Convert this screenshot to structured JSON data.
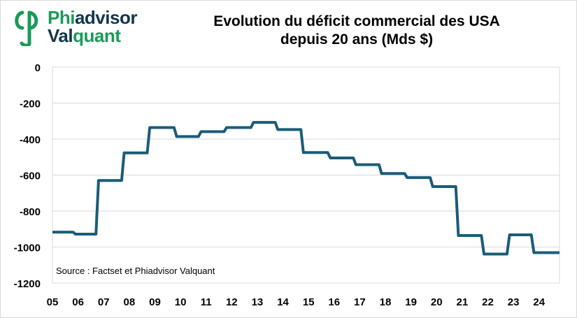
{
  "logo": {
    "line1": "Phiadvisor",
    "line2": "Valquant",
    "colors": {
      "phi": "#1a9a5a",
      "advisor": "#12364d"
    }
  },
  "title": {
    "line1": "Evolution du déficit commercial des USA",
    "line2": "depuis 20 ans (Mds $)"
  },
  "source": "Source : Factset et Phiadvisor Valquant",
  "colors": {
    "line": "#1b5c78",
    "grid": "#d9d9d9"
  },
  "chart_data": {
    "type": "line",
    "title": "Evolution du déficit commercial des USA depuis 20 ans (Mds $)",
    "xlabel": "",
    "ylabel": "",
    "ylim": [
      -1200,
      0
    ],
    "yticks": [
      0,
      -200,
      -400,
      -600,
      -800,
      -1000,
      -1200
    ],
    "xlim": [
      2005,
      2024.8
    ],
    "xticks": [
      "05",
      "06",
      "07",
      "08",
      "09",
      "10",
      "11",
      "12",
      "13",
      "14",
      "15",
      "16",
      "17",
      "18",
      "19",
      "20",
      "21",
      "22",
      "23",
      "24"
    ],
    "grid": true,
    "legend": "none",
    "series": [
      {
        "values": [
          {
            "x": 2005.0,
            "y": -917
          },
          {
            "x": 2005.8,
            "y": -917
          },
          {
            "x": 2005.9,
            "y": -928
          },
          {
            "x": 2006.7,
            "y": -928
          },
          {
            "x": 2006.8,
            "y": -630
          },
          {
            "x": 2007.7,
            "y": -630
          },
          {
            "x": 2007.8,
            "y": -477
          },
          {
            "x": 2008.7,
            "y": -477
          },
          {
            "x": 2008.8,
            "y": -336
          },
          {
            "x": 2009.75,
            "y": -336
          },
          {
            "x": 2009.85,
            "y": -386
          },
          {
            "x": 2010.7,
            "y": -386
          },
          {
            "x": 2010.8,
            "y": -359
          },
          {
            "x": 2011.7,
            "y": -359
          },
          {
            "x": 2011.8,
            "y": -336
          },
          {
            "x": 2012.75,
            "y": -336
          },
          {
            "x": 2012.85,
            "y": -307
          },
          {
            "x": 2013.7,
            "y": -307
          },
          {
            "x": 2013.8,
            "y": -347
          },
          {
            "x": 2014.7,
            "y": -347
          },
          {
            "x": 2014.8,
            "y": -475
          },
          {
            "x": 2015.75,
            "y": -475
          },
          {
            "x": 2015.85,
            "y": -505
          },
          {
            "x": 2016.75,
            "y": -505
          },
          {
            "x": 2016.85,
            "y": -542
          },
          {
            "x": 2017.75,
            "y": -542
          },
          {
            "x": 2017.85,
            "y": -591
          },
          {
            "x": 2018.75,
            "y": -591
          },
          {
            "x": 2018.85,
            "y": -614
          },
          {
            "x": 2019.75,
            "y": -614
          },
          {
            "x": 2019.85,
            "y": -664
          },
          {
            "x": 2020.75,
            "y": -664
          },
          {
            "x": 2020.85,
            "y": -936
          },
          {
            "x": 2021.75,
            "y": -936
          },
          {
            "x": 2021.85,
            "y": -1039
          },
          {
            "x": 2022.75,
            "y": -1039
          },
          {
            "x": 2022.85,
            "y": -932
          },
          {
            "x": 2023.7,
            "y": -932
          },
          {
            "x": 2023.8,
            "y": -1031
          },
          {
            "x": 2024.8,
            "y": -1031
          }
        ]
      }
    ]
  }
}
